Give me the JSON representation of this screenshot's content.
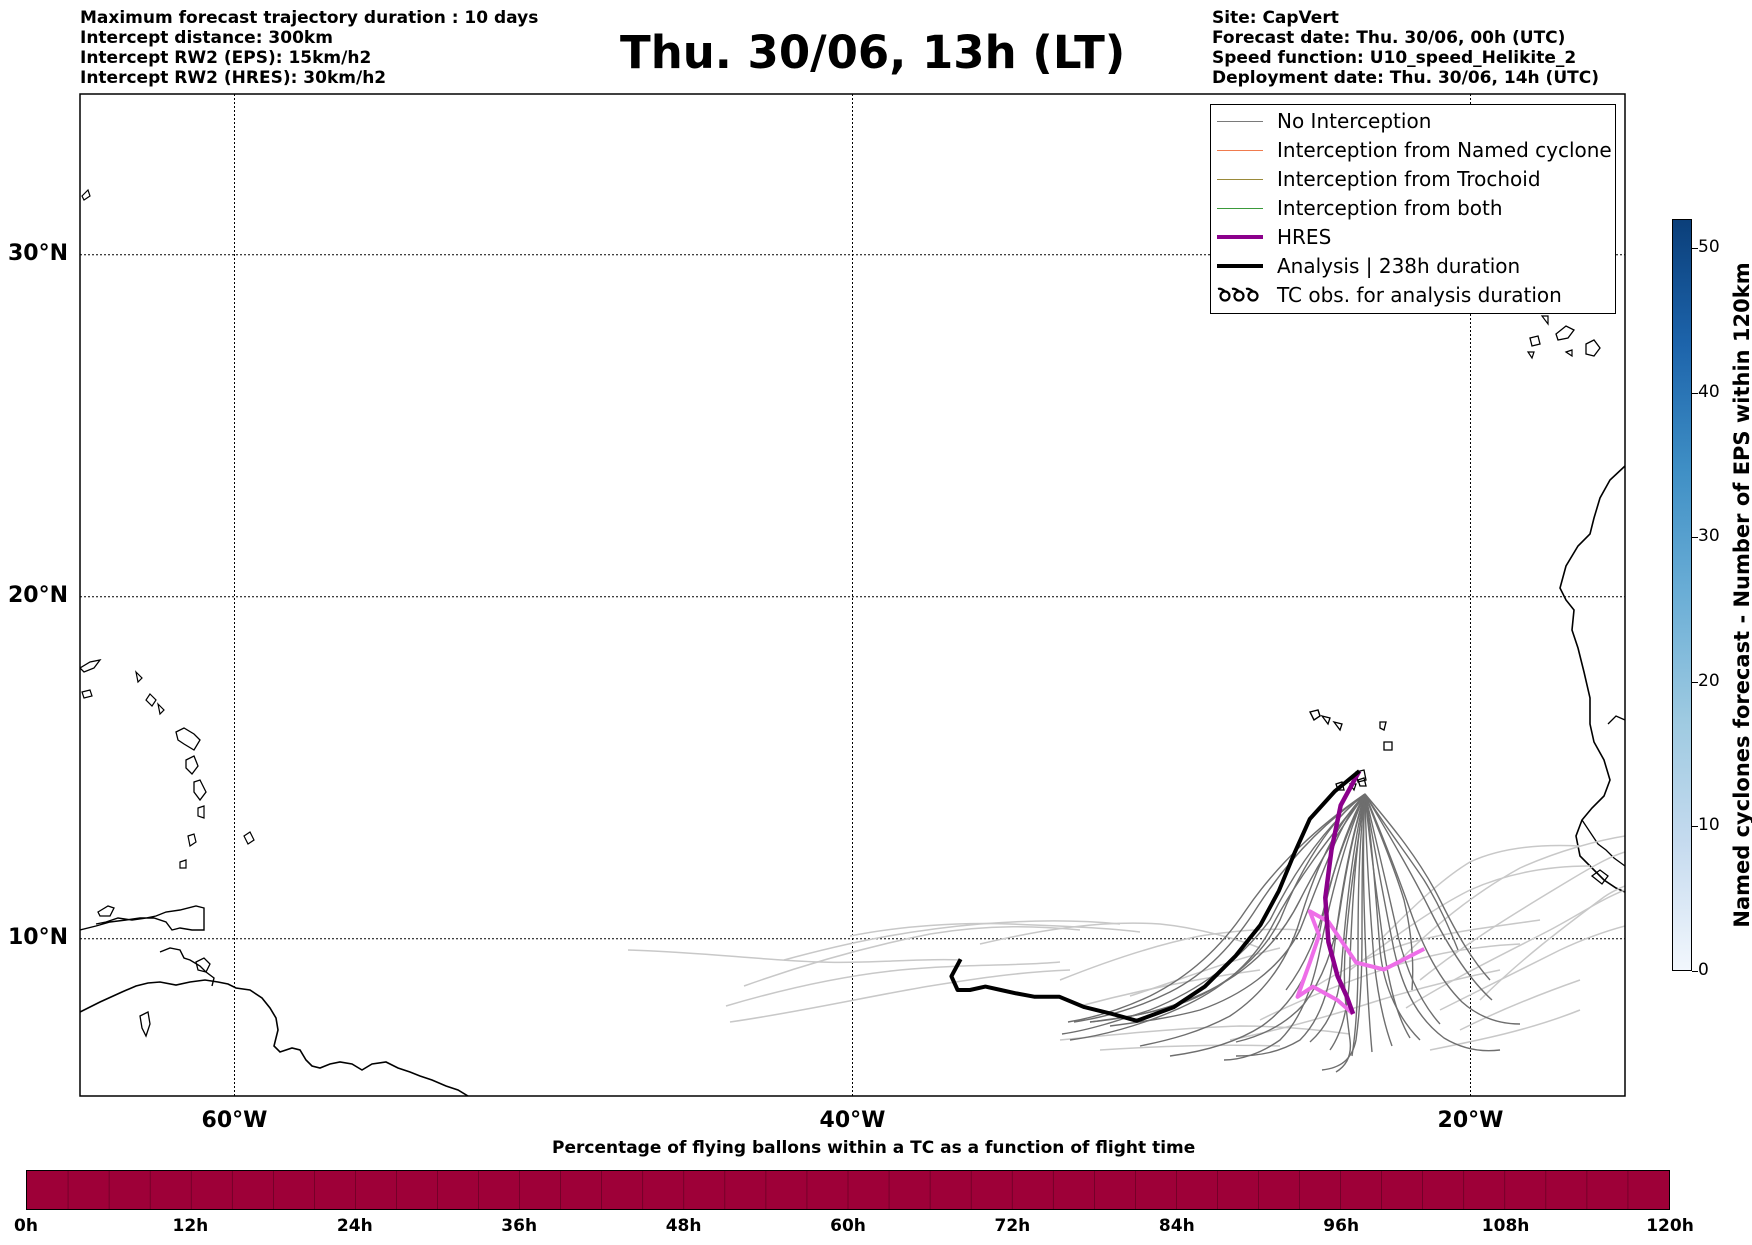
{
  "header": {
    "left_lines": [
      "Maximum forecast trajectory duration : 10 days",
      "Intercept distance: 300km",
      "Intercept RW2 (EPS):  15km/h2",
      "Intercept RW2 (HRES): 30km/h2"
    ],
    "title": "Thu. 30/06, 13h (LT)",
    "right_lines": [
      "Site: CapVert",
      "Forecast date: Thu. 30/06, 00h (UTC)",
      "Speed function: U10_speed_Helikite_2",
      "Deployment date: Thu. 30/06, 14h (UTC)"
    ]
  },
  "map": {
    "lon_range": [
      -65,
      -15
    ],
    "lat_range": [
      5.4,
      34.7
    ],
    "lat_labels": [
      {
        "value": 30,
        "text": "30°N"
      },
      {
        "value": 20,
        "text": "20°N"
      },
      {
        "value": 10,
        "text": "10°N"
      }
    ],
    "lon_labels": [
      {
        "value": -60,
        "text": "60°W"
      },
      {
        "value": -40,
        "text": "40°W"
      },
      {
        "value": -20,
        "text": "20°W"
      }
    ],
    "launch_site": [
      -23.6,
      14.9
    ],
    "colors": {
      "no_interception": "#6e6e6e",
      "no_interception_late": "#c8c8c8",
      "named_cyclone": "#f07b4e",
      "trochoid": "#9a8a3a",
      "both": "#3a9a3a",
      "hres": "#8b008b",
      "hres_late": "#ee6ee8",
      "analysis": "#000000"
    },
    "analysis_track": [
      [
        -23.6,
        14.9
      ],
      [
        -24.4,
        14.3
      ],
      [
        -25.2,
        13.5
      ],
      [
        -25.7,
        12.5
      ],
      [
        -26.2,
        11.4
      ],
      [
        -26.8,
        10.4
      ],
      [
        -27.6,
        9.5
      ],
      [
        -28.6,
        8.6
      ],
      [
        -29.6,
        8.0
      ],
      [
        -30.8,
        7.6
      ],
      [
        -31.6,
        7.8
      ],
      [
        -32.5,
        8.0
      ],
      [
        -33.3,
        8.3
      ],
      [
        -34.1,
        8.3
      ],
      [
        -34.7,
        8.4
      ],
      [
        -35.2,
        8.5
      ],
      [
        -35.7,
        8.6
      ],
      [
        -36.2,
        8.5
      ],
      [
        -36.6,
        8.5
      ],
      [
        -36.8,
        8.9
      ],
      [
        -36.5,
        9.4
      ]
    ],
    "hres_track": [
      [
        -23.6,
        14.9
      ],
      [
        -24.2,
        13.9
      ],
      [
        -24.5,
        12.6
      ],
      [
        -24.7,
        11.2
      ],
      [
        -24.6,
        9.9
      ],
      [
        -24.3,
        8.9
      ],
      [
        -24.0,
        8.3
      ],
      [
        -23.8,
        7.8
      ]
    ],
    "hres_late_track": [
      [
        -23.8,
        7.8
      ],
      [
        -24.3,
        8.2
      ],
      [
        -25.1,
        8.6
      ],
      [
        -25.6,
        8.3
      ],
      [
        -25.2,
        9.3
      ],
      [
        -24.9,
        10.1
      ],
      [
        -25.2,
        10.8
      ],
      [
        -24.6,
        10.5
      ],
      [
        -23.7,
        9.3
      ],
      [
        -22.8,
        9.1
      ],
      [
        -21.5,
        9.7
      ]
    ]
  },
  "legend": {
    "items": [
      {
        "label": "No Interception",
        "color": "#7a7a7a",
        "width": 1.5,
        "kind": "line"
      },
      {
        "label": "Interception from Named cyclone",
        "color": "#f07b4e",
        "width": 1.5,
        "kind": "line"
      },
      {
        "label": "Interception from Trochoid",
        "color": "#9a8a3a",
        "width": 1.5,
        "kind": "line"
      },
      {
        "label": "Interception from both",
        "color": "#3a9a3a",
        "width": 1.5,
        "kind": "line"
      },
      {
        "label": "HRES",
        "color": "#8b008b",
        "width": 4,
        "kind": "line"
      },
      {
        "label": "Analysis | 238h duration",
        "color": "#000000",
        "width": 4,
        "kind": "line"
      },
      {
        "label": "TC obs. for analysis duration",
        "color": "#000000",
        "width": 2,
        "kind": "symbol"
      }
    ]
  },
  "colorbar_vertical": {
    "label": "Named cyclones forecast - Number of EPS within 120km",
    "min": 0,
    "max": 52,
    "ticks": [
      "0",
      "10",
      "20",
      "30",
      "40",
      "50"
    ],
    "tick_values": [
      0,
      10,
      20,
      30,
      40,
      50
    ]
  },
  "colorbar_horizontal": {
    "title": "Percentage of flying ballons within a TC as a function of flight time",
    "color": "#9e0038",
    "ticks": [
      "0h",
      "12h",
      "24h",
      "36h",
      "48h",
      "60h",
      "72h",
      "84h",
      "96h",
      "108h",
      "120h"
    ]
  }
}
